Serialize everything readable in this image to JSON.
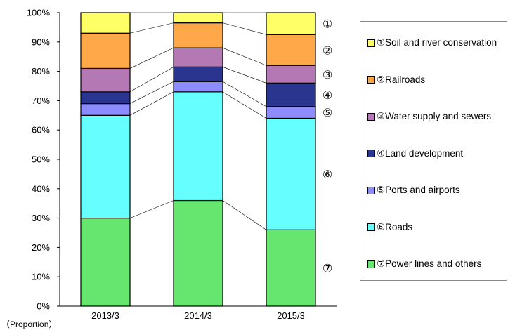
{
  "chart_data": {
    "type": "bar",
    "stacked": true,
    "normalized": true,
    "categories": [
      "2013/3",
      "2014/3",
      "2015/3"
    ],
    "series": [
      {
        "name": "⑦Power lines and others",
        "marker": "⑦",
        "color": "#66e66e",
        "values": [
          30,
          36,
          26
        ]
      },
      {
        "name": "⑥Roads",
        "marker": "⑥",
        "color": "#66ffff",
        "values": [
          35,
          37,
          38
        ]
      },
      {
        "name": "⑤Ports and airports",
        "marker": "⑤",
        "color": "#8c8cff",
        "values": [
          4,
          3.5,
          4
        ]
      },
      {
        "name": "④Land development",
        "marker": "④",
        "color": "#2a3590",
        "values": [
          4,
          5,
          8
        ]
      },
      {
        "name": "③Water supply and sewers",
        "marker": "③",
        "color": "#b478b4",
        "values": [
          8,
          6.5,
          6
        ]
      },
      {
        "name": "②Railroads",
        "marker": "②",
        "color": "#ffa84a",
        "values": [
          12,
          8.5,
          10.5
        ]
      },
      {
        "name": "①Soil and river conservation",
        "marker": "①",
        "color": "#ffff66",
        "values": [
          7,
          3.5,
          7.5
        ]
      }
    ],
    "yticks": [
      "0%",
      "10%",
      "20%",
      "30%",
      "40%",
      "50%",
      "60%",
      "70%",
      "80%",
      "90%",
      "100%"
    ],
    "ylim": [
      0,
      100
    ],
    "ylabel": "（Proportion）",
    "legend_position": "right",
    "legend_order": [
      "①Soil and river conservation",
      "②Railroads",
      "③Water supply and sewers",
      "④Land development",
      "⑤Ports and airports",
      "⑥Roads",
      "⑦Power lines and others"
    ]
  }
}
